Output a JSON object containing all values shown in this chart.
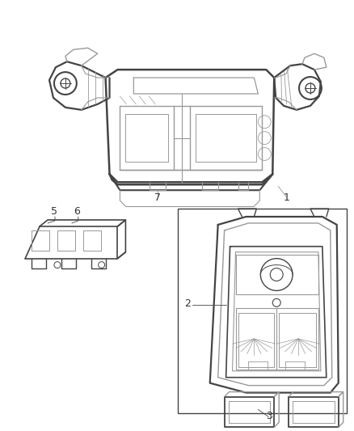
{
  "background_color": "#ffffff",
  "line_color": "#444444",
  "light_line_color": "#999999",
  "label_color": "#333333",
  "figsize": [
    4.38,
    5.33
  ],
  "dpi": 100
}
